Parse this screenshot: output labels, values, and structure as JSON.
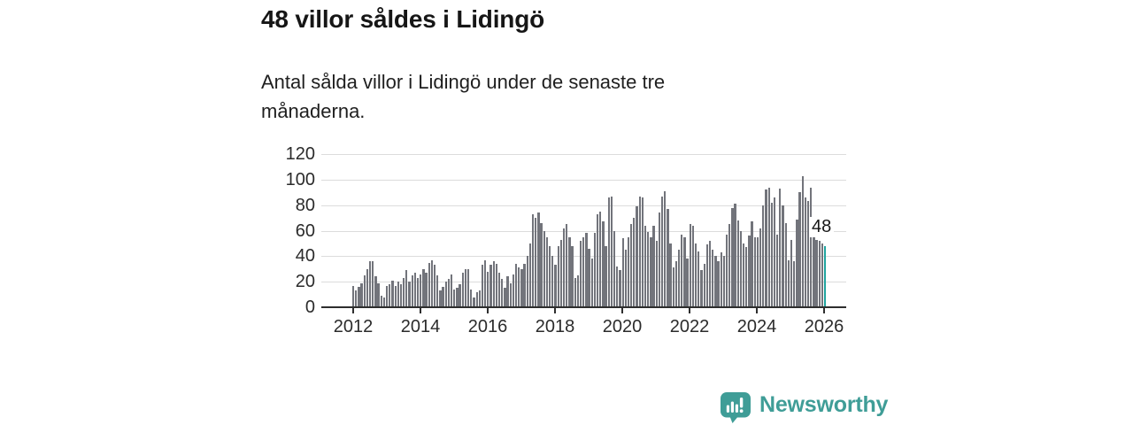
{
  "header": {
    "title": "48 villor såldes i Lidingö",
    "subtitle": "Antal sålda villor i Lidingö under de senaste tre månaderna."
  },
  "chart_data": {
    "type": "bar",
    "frequency": "monthly",
    "x_start": "2012-01",
    "x_end": "2026-01",
    "ylim": [
      0,
      120
    ],
    "grid": true,
    "legend": false,
    "yticks": [
      0,
      20,
      40,
      60,
      80,
      100,
      120
    ],
    "xticks": [
      "2012",
      "2014",
      "2016",
      "2018",
      "2020",
      "2022",
      "2024",
      "2026"
    ],
    "values": [
      17,
      13,
      16,
      19,
      25,
      30,
      36,
      36,
      24,
      19,
      9,
      8,
      17,
      18,
      21,
      17,
      20,
      18,
      23,
      29,
      20,
      25,
      27,
      23,
      26,
      30,
      27,
      35,
      37,
      33,
      25,
      13,
      16,
      20,
      22,
      26,
      14,
      15,
      18,
      27,
      30,
      30,
      14,
      8,
      12,
      13,
      33,
      37,
      28,
      33,
      36,
      34,
      27,
      22,
      15,
      24,
      19,
      26,
      34,
      31,
      30,
      34,
      40,
      50,
      73,
      70,
      74,
      66,
      60,
      55,
      48,
      40,
      33,
      48,
      53,
      62,
      65,
      55,
      48,
      23,
      25,
      52,
      55,
      58,
      46,
      38,
      58,
      73,
      75,
      67,
      48,
      86,
      87,
      60,
      32,
      29,
      54,
      45,
      55,
      65,
      70,
      79,
      87,
      86,
      64,
      59,
      55,
      64,
      52,
      74,
      87,
      91,
      77,
      50,
      31,
      36,
      45,
      57,
      55,
      38,
      65,
      64,
      50,
      44,
      29,
      34,
      49,
      52,
      45,
      40,
      36,
      43,
      40,
      57,
      65,
      78,
      81,
      68,
      60,
      50,
      47,
      56,
      67,
      55,
      55,
      62,
      80,
      92,
      94,
      82,
      86,
      57,
      93,
      80,
      66,
      37,
      53,
      36,
      69,
      90,
      103,
      86,
      83,
      94,
      56,
      53,
      52,
      50,
      48
    ],
    "highlight_index": 168,
    "highlight_value": 48,
    "annotation_label": "48",
    "bar_color": "#72747b",
    "highlight_color": "#21a49f"
  },
  "branding": {
    "name": "Newsworthy",
    "color": "#3f9d97"
  }
}
